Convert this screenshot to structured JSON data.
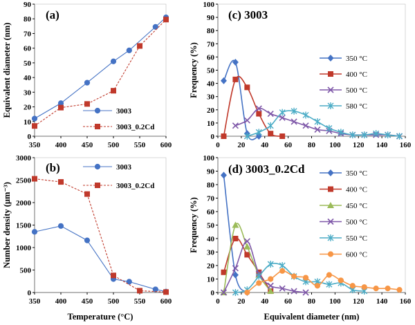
{
  "chart_data": [
    {
      "id": "a",
      "type": "line",
      "title": "(a)",
      "xlabel": "",
      "ylabel": "Equivalent diameter (nm)",
      "xlim": [
        350,
        600
      ],
      "ylim": [
        0,
        90
      ],
      "xticks": [
        350,
        400,
        450,
        500,
        550,
        600
      ],
      "yticks": [
        0,
        10,
        20,
        30,
        40,
        50,
        60,
        70,
        80,
        90
      ],
      "xtick_labels": [
        "350",
        "400",
        "450",
        "500",
        "550",
        "600"
      ],
      "ytick_labels": [
        "0",
        "10",
        "20",
        "30",
        "40",
        "50",
        "60",
        "70",
        "80",
        "90"
      ],
      "legend": "lower-center",
      "grid": false,
      "series": [
        {
          "name": "3003",
          "color": "#4472C4",
          "marker": "circle",
          "dash": false,
          "x": [
            350,
            400,
            450,
            500,
            530,
            580,
            600
          ],
          "values": [
            12,
            22.5,
            36.5,
            51,
            58.5,
            74.5,
            81
          ]
        },
        {
          "name": "3003_0.2Cd",
          "color": "#C0392B",
          "marker": "square",
          "dash": true,
          "x": [
            350,
            400,
            450,
            500,
            550,
            600
          ],
          "values": [
            7,
            19.5,
            22,
            31,
            61.5,
            79.5
          ]
        }
      ]
    },
    {
      "id": "b",
      "type": "line",
      "title": "(b)",
      "xlabel": "Temperature (°C)",
      "ylabel": "Number density (μm⁻³)",
      "xlim": [
        350,
        600
      ],
      "ylim": [
        0,
        3000
      ],
      "xticks": [
        350,
        400,
        450,
        500,
        550,
        600
      ],
      "yticks": [
        0,
        500,
        1000,
        1500,
        2000,
        2500,
        3000
      ],
      "xtick_labels": [
        "350",
        "400",
        "450",
        "500",
        "550",
        "600"
      ],
      "ytick_labels": [
        "0",
        "500",
        "1000",
        "1500",
        "2000",
        "2500",
        "3000"
      ],
      "legend": "top-right",
      "grid": false,
      "series": [
        {
          "name": "3003",
          "color": "#4472C4",
          "marker": "circle",
          "dash": false,
          "x": [
            350,
            400,
            450,
            500,
            530,
            580,
            600
          ],
          "values": [
            1350,
            1480,
            1160,
            300,
            240,
            70,
            20
          ]
        },
        {
          "name": "3003_0.2Cd",
          "color": "#C0392B",
          "marker": "square",
          "dash": true,
          "x": [
            350,
            400,
            450,
            500,
            550,
            600
          ],
          "values": [
            2530,
            2460,
            2190,
            380,
            40,
            10
          ]
        }
      ]
    },
    {
      "id": "c",
      "type": "line",
      "title": "(c) 3003",
      "xlabel": "",
      "ylabel": "Frequency (%)",
      "xlim": [
        0,
        160
      ],
      "ylim": [
        0,
        100
      ],
      "xticks": [
        0,
        20,
        40,
        60,
        80,
        100,
        120,
        140,
        160
      ],
      "yticks": [
        0,
        10,
        20,
        30,
        40,
        50,
        60,
        70,
        80,
        90,
        100
      ],
      "xtick_labels": [
        "0",
        "20",
        "40",
        "60",
        "80",
        "100",
        "120",
        "140",
        "160"
      ],
      "ytick_labels": [
        "0",
        "10",
        "20",
        "30",
        "40",
        "50",
        "60",
        "70",
        "80",
        "90",
        "100"
      ],
      "legend": "right",
      "grid": false,
      "series": [
        {
          "name": "350 °C",
          "color": "#4472C4",
          "marker": "diamond",
          "x": [
            5,
            15,
            25,
            35
          ],
          "values": [
            42,
            56,
            2,
            0
          ]
        },
        {
          "name": "400 °C",
          "color": "#C0392B",
          "marker": "square",
          "x": [
            5,
            15,
            25,
            35,
            45,
            55
          ],
          "values": [
            0,
            43,
            37,
            17,
            2,
            0
          ]
        },
        {
          "name": "500 °C",
          "color": "#7E57A8",
          "marker": "x",
          "x": [
            15,
            25,
            35,
            45,
            55,
            65,
            75,
            85,
            95,
            105,
            115,
            125,
            135,
            145,
            155
          ],
          "values": [
            8,
            12,
            21,
            17,
            14,
            11,
            8,
            5,
            4,
            2,
            1,
            1,
            1,
            1,
            0
          ]
        },
        {
          "name": "580 °C",
          "color": "#4BACC6",
          "marker": "star",
          "x": [
            25,
            35,
            45,
            55,
            65,
            75,
            85,
            95,
            105,
            115,
            125,
            135,
            145,
            155
          ],
          "values": [
            0,
            3,
            8,
            18,
            19,
            16,
            11,
            6,
            3,
            1,
            1,
            2,
            1,
            0
          ]
        }
      ]
    },
    {
      "id": "d",
      "type": "line",
      "title": "(d) 3003_0.2Cd",
      "xlabel": "Equivalent diameter (nm)",
      "ylabel": "Frequency (%)",
      "xlim": [
        0,
        160
      ],
      "ylim": [
        0,
        100
      ],
      "xticks": [
        0,
        20,
        40,
        60,
        80,
        100,
        120,
        140,
        160
      ],
      "yticks": [
        0,
        10,
        20,
        30,
        40,
        50,
        60,
        70,
        80,
        90,
        100
      ],
      "xtick_labels": [
        "0",
        "20",
        "40",
        "60",
        "80",
        "100",
        "120",
        "140",
        "160"
      ],
      "ytick_labels": [
        "0",
        "10",
        "20",
        "30",
        "40",
        "50",
        "60",
        "70",
        "80",
        "90",
        "100"
      ],
      "legend": "right",
      "grid": false,
      "series": [
        {
          "name": "350 °C",
          "color": "#4472C4",
          "marker": "diamond",
          "x": [
            5,
            15,
            25
          ],
          "values": [
            87,
            13,
            0
          ]
        },
        {
          "name": "400 °C",
          "color": "#C0392B",
          "marker": "square",
          "x": [
            5,
            15,
            25,
            35,
            45
          ],
          "values": [
            15,
            40,
            28,
            15,
            1
          ]
        },
        {
          "name": "450 °C",
          "color": "#9BBB59",
          "marker": "triangle",
          "x": [
            5,
            15,
            25,
            35,
            45
          ],
          "values": [
            0,
            50,
            34,
            13,
            1
          ]
        },
        {
          "name": "500 °C",
          "color": "#7E57A8",
          "marker": "x",
          "x": [
            5,
            15,
            25,
            35,
            45,
            55,
            65,
            75
          ],
          "values": [
            0,
            18,
            38,
            14,
            5,
            3,
            1,
            0
          ]
        },
        {
          "name": "550 °C",
          "color": "#4BACC6",
          "marker": "star",
          "x": [
            15,
            25,
            35,
            45,
            55,
            65,
            75,
            85,
            95,
            105,
            115,
            125
          ],
          "values": [
            0,
            2,
            12,
            21,
            20,
            12,
            8,
            8,
            6,
            7,
            2,
            1
          ]
        },
        {
          "name": "600 °C",
          "color": "#F79646",
          "marker": "circle",
          "x": [
            25,
            35,
            45,
            55,
            65,
            75,
            85,
            95,
            105,
            115,
            125,
            135,
            145,
            155
          ],
          "values": [
            0,
            7,
            10,
            16,
            12,
            11,
            5,
            13,
            9,
            5,
            4,
            3,
            3,
            2
          ]
        }
      ]
    }
  ]
}
